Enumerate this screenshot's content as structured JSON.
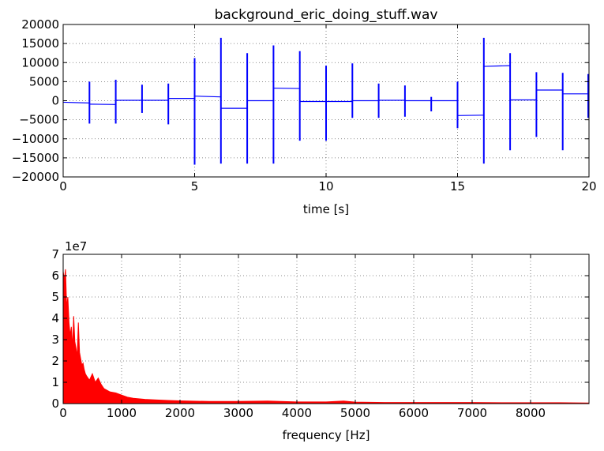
{
  "chart_data": [
    {
      "type": "line",
      "title": "background_eric_doing_stuff.wav",
      "xlabel": "time [s]",
      "ylabel": "",
      "xlim": [
        0,
        20
      ],
      "ylim": [
        -20000,
        20000
      ],
      "xticks": [
        0,
        5,
        10,
        15,
        20
      ],
      "xtick_labels": [
        "0",
        "5",
        "10",
        "15",
        "20"
      ],
      "yticks": [
        20000,
        15000,
        10000,
        5000,
        0,
        -5000,
        -10000,
        -15000,
        -20000
      ],
      "ytick_labels": [
        "20000",
        "15000",
        "10000",
        "5000",
        "0",
        "−5000",
        "−10000",
        "−15000",
        "−20000"
      ],
      "grid": true,
      "series": [
        {
          "color": "#0000ff",
          "segments": [
            {
              "x0": 0.0,
              "x1": 1.0,
              "y0": -400,
              "y1": -600
            },
            {
              "x0": 1.0,
              "x1": 2.0,
              "y0": -900,
              "y1": -1000
            },
            {
              "x0": 2.0,
              "x1": 3.0,
              "y0": 100,
              "y1": 100
            },
            {
              "x0": 3.0,
              "x1": 4.0,
              "y0": 100,
              "y1": 100
            },
            {
              "x0": 4.0,
              "x1": 5.0,
              "y0": 600,
              "y1": 600
            },
            {
              "x0": 5.0,
              "x1": 6.0,
              "y0": 1200,
              "y1": 1000
            },
            {
              "x0": 6.0,
              "x1": 7.0,
              "y0": -2000,
              "y1": -2000
            },
            {
              "x0": 7.0,
              "x1": 8.0,
              "y0": 0,
              "y1": 0
            },
            {
              "x0": 8.0,
              "x1": 9.0,
              "y0": 3300,
              "y1": 3200
            },
            {
              "x0": 9.0,
              "x1": 10.0,
              "y0": -200,
              "y1": -200
            },
            {
              "x0": 10.0,
              "x1": 11.0,
              "y0": -200,
              "y1": -200
            },
            {
              "x0": 11.0,
              "x1": 12.0,
              "y0": 0,
              "y1": 0
            },
            {
              "x0": 12.0,
              "x1": 13.0,
              "y0": 100,
              "y1": 100
            },
            {
              "x0": 13.0,
              "x1": 14.0,
              "y0": 0,
              "y1": 0
            },
            {
              "x0": 14.0,
              "x1": 15.0,
              "y0": 0,
              "y1": 0
            },
            {
              "x0": 15.0,
              "x1": 16.0,
              "y0": -3900,
              "y1": -3800
            },
            {
              "x0": 16.0,
              "x1": 17.0,
              "y0": 9000,
              "y1": 9200
            },
            {
              "x0": 17.0,
              "x1": 18.0,
              "y0": 200,
              "y1": 200
            },
            {
              "x0": 18.0,
              "x1": 19.0,
              "y0": 2800,
              "y1": 2800
            },
            {
              "x0": 19.0,
              "x1": 20.0,
              "y0": 1800,
              "y1": 1800
            }
          ],
          "spikes": [
            {
              "x": 1.0,
              "max": 5000,
              "min": -6000
            },
            {
              "x": 2.0,
              "max": 5500,
              "min": -6000
            },
            {
              "x": 3.0,
              "max": 4200,
              "min": -3200
            },
            {
              "x": 4.0,
              "max": 4500,
              "min": -6200
            },
            {
              "x": 5.0,
              "max": 11200,
              "min": -16800
            },
            {
              "x": 6.0,
              "max": 16500,
              "min": -16500
            },
            {
              "x": 7.0,
              "max": 12500,
              "min": -16500
            },
            {
              "x": 8.0,
              "max": 14500,
              "min": -16500
            },
            {
              "x": 9.0,
              "max": 13000,
              "min": -10500
            },
            {
              "x": 10.0,
              "max": 9200,
              "min": -10500
            },
            {
              "x": 11.0,
              "max": 9800,
              "min": -4500
            },
            {
              "x": 12.0,
              "max": 4500,
              "min": -4500
            },
            {
              "x": 13.0,
              "max": 4000,
              "min": -4200
            },
            {
              "x": 14.0,
              "max": 1000,
              "min": -2800
            },
            {
              "x": 15.0,
              "max": 5000,
              "min": -7200
            },
            {
              "x": 16.0,
              "max": 16500,
              "min": -16500
            },
            {
              "x": 17.0,
              "max": 12500,
              "min": -13000
            },
            {
              "x": 18.0,
              "max": 7500,
              "min": -9500
            },
            {
              "x": 19.0,
              "max": 7300,
              "min": -13000
            },
            {
              "x": 20.0,
              "max": 7000,
              "min": -4500
            }
          ]
        }
      ]
    },
    {
      "type": "area",
      "title": "",
      "xlabel": "frequency [Hz]",
      "ylabel": "",
      "y_multiplier_label": "1e7",
      "xlim": [
        0,
        9000
      ],
      "ylim": [
        0,
        7
      ],
      "xticks": [
        0,
        1000,
        2000,
        3000,
        4000,
        5000,
        6000,
        7000,
        8000
      ],
      "xtick_labels": [
        "0",
        "1000",
        "2000",
        "3000",
        "4000",
        "5000",
        "6000",
        "7000",
        "8000"
      ],
      "yticks": [
        7,
        6,
        5,
        4,
        3,
        2,
        1,
        0
      ],
      "ytick_labels": [
        "7",
        "6",
        "5",
        "4",
        "3",
        "2",
        "1",
        "0"
      ],
      "grid": true,
      "series": [
        {
          "color": "#ff0000",
          "x": [
            0,
            20,
            40,
            60,
            80,
            100,
            120,
            140,
            160,
            180,
            200,
            220,
            240,
            260,
            280,
            300,
            320,
            340,
            360,
            380,
            400,
            450,
            500,
            550,
            600,
            650,
            700,
            800,
            900,
            1000,
            1100,
            1200,
            1400,
            1600,
            1800,
            2000,
            2500,
            3000,
            3500,
            4000,
            4500,
            4800,
            5000,
            5500,
            6000,
            6500,
            7000,
            7500,
            8000,
            8500,
            9000
          ],
          "values": [
            6.2,
            5.8,
            6.3,
            4.5,
            5.0,
            3.8,
            3.2,
            3.6,
            2.6,
            4.1,
            2.9,
            2.6,
            2.2,
            3.8,
            2.4,
            2.1,
            1.8,
            1.9,
            1.6,
            1.4,
            1.3,
            1.1,
            1.4,
            1.0,
            1.2,
            0.9,
            0.7,
            0.55,
            0.5,
            0.4,
            0.3,
            0.25,
            0.2,
            0.17,
            0.15,
            0.13,
            0.1,
            0.1,
            0.12,
            0.08,
            0.08,
            0.12,
            0.07,
            0.05,
            0.05,
            0.05,
            0.05,
            0.04,
            0.04,
            0.04,
            0.03
          ]
        }
      ]
    }
  ]
}
